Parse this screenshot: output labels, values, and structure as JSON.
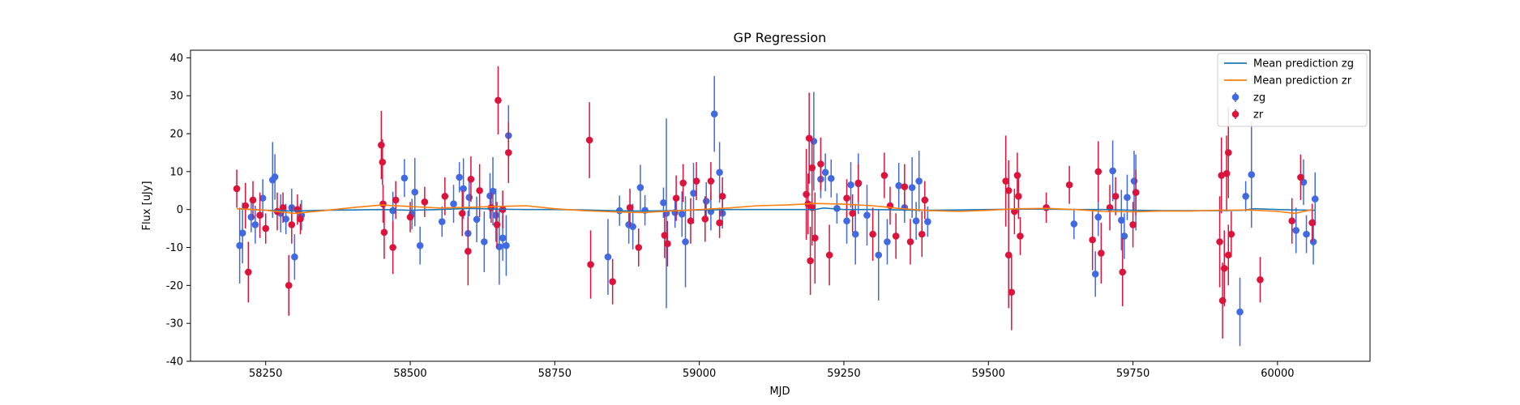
{
  "chart_data": {
    "type": "scatter",
    "title": "GP Regression",
    "xlabel": "MJD",
    "ylabel": "Flux [uJy]",
    "xlim": [
      58120,
      60160
    ],
    "ylim": [
      -40,
      42
    ],
    "x_ticks": [
      58250,
      58500,
      58750,
      59000,
      59250,
      59500,
      59750,
      60000
    ],
    "y_ticks": [
      -40,
      -30,
      -20,
      -10,
      0,
      10,
      20,
      30,
      40
    ],
    "grid": false,
    "legend_position": "top-right",
    "series": [
      {
        "name": "zg",
        "kind": "errorbar",
        "color": "#4169e1",
        "points": [
          [
            58205,
            -9.5,
            10
          ],
          [
            58210,
            -6.2,
            8
          ],
          [
            58225,
            -2.0,
            4
          ],
          [
            58232,
            -4.0,
            5
          ],
          [
            58245,
            3.0,
            5
          ],
          [
            58262,
            7.8,
            10
          ],
          [
            58266,
            8.6,
            6
          ],
          [
            58276,
            -1.0,
            5
          ],
          [
            58285,
            -2.5,
            4
          ],
          [
            58295,
            0.5,
            5
          ],
          [
            58300,
            -12.5,
            6
          ],
          [
            58312,
            -1.5,
            4
          ],
          [
            58470,
            -0.3,
            5
          ],
          [
            58490,
            8.3,
            5
          ],
          [
            58503,
            -1.2,
            4
          ],
          [
            58508,
            4.6,
            9
          ],
          [
            58517,
            -9.5,
            5
          ],
          [
            58555,
            -3.2,
            4
          ],
          [
            58575,
            1.5,
            5
          ],
          [
            58585,
            8.5,
            4
          ],
          [
            58592,
            5.5,
            8
          ],
          [
            58600,
            -6.3,
            6
          ],
          [
            58602,
            3.2,
            5
          ],
          [
            58615,
            -2.6,
            6
          ],
          [
            58628,
            -8.5,
            8
          ],
          [
            58638,
            3.6,
            6
          ],
          [
            58643,
            4.8,
            9
          ],
          [
            58648,
            -1.5,
            7
          ],
          [
            58654,
            -9.8,
            10
          ],
          [
            58660,
            -7.5,
            6
          ],
          [
            58666,
            -9.5,
            8
          ],
          [
            58670,
            19.5,
            8
          ],
          [
            58842,
            -12.5,
            10
          ],
          [
            58862,
            -0.3,
            4
          ],
          [
            58878,
            -4.0,
            5
          ],
          [
            58885,
            -4.5,
            6
          ],
          [
            58898,
            5.8,
            6
          ],
          [
            58906,
            -0.2,
            4
          ],
          [
            58938,
            1.8,
            4
          ],
          [
            58943,
            -1.0,
            25
          ],
          [
            58958,
            -0.8,
            4
          ],
          [
            58970,
            -1.2,
            6
          ],
          [
            58976,
            -8.5,
            12
          ],
          [
            58990,
            4.3,
            8
          ],
          [
            59012,
            2.2,
            5
          ],
          [
            59020,
            -0.5,
            5
          ],
          [
            59026,
            25.2,
            10
          ],
          [
            59035,
            9.8,
            8
          ],
          [
            59040,
            -1.0,
            4
          ],
          [
            59198,
            18.0,
            13
          ],
          [
            59210,
            8.0,
            5
          ],
          [
            59218,
            9.8,
            5
          ],
          [
            59228,
            8.2,
            5
          ],
          [
            59238,
            0.3,
            4
          ],
          [
            59255,
            -3.0,
            6
          ],
          [
            59262,
            6.5,
            6
          ],
          [
            59270,
            -6.5,
            8
          ],
          [
            59275,
            6.8,
            8
          ],
          [
            59290,
            -1.5,
            8
          ],
          [
            59310,
            -12.0,
            12
          ],
          [
            59325,
            -8.5,
            6
          ],
          [
            59345,
            6.3,
            6
          ],
          [
            59355,
            0.5,
            4
          ],
          [
            59368,
            5.8,
            8
          ],
          [
            59375,
            -3.0,
            5
          ],
          [
            59380,
            7.5,
            8
          ],
          [
            59395,
            -3.2,
            4
          ],
          [
            59648,
            -3.8,
            4
          ],
          [
            59685,
            -17.0,
            6
          ],
          [
            59690,
            -2.0,
            5
          ],
          [
            59715,
            10.2,
            8
          ],
          [
            59730,
            -2.8,
            8
          ],
          [
            59735,
            -7.0,
            6
          ],
          [
            59740,
            3.2,
            6
          ],
          [
            59752,
            7.5,
            8
          ],
          [
            59755,
            4.5,
            10
          ],
          [
            59935,
            -27.0,
            9
          ],
          [
            59945,
            3.5,
            4
          ],
          [
            59955,
            9.2,
            14
          ],
          [
            60032,
            -5.5,
            6
          ],
          [
            60045,
            7.2,
            6
          ],
          [
            60050,
            -6.5,
            5
          ],
          [
            60065,
            2.8,
            7
          ],
          [
            60062,
            -8.5,
            6
          ]
        ]
      },
      {
        "name": "zr",
        "kind": "errorbar",
        "color": "#dc143c",
        "points": [
          [
            58200,
            5.5,
            5
          ],
          [
            58215,
            1.0,
            6
          ],
          [
            58220,
            -16.5,
            8
          ],
          [
            58228,
            2.5,
            5
          ],
          [
            58240,
            -1.5,
            6
          ],
          [
            58250,
            -5.0,
            4
          ],
          [
            58270,
            -0.5,
            5
          ],
          [
            58280,
            0.5,
            4
          ],
          [
            58290,
            -20.0,
            8
          ],
          [
            58295,
            -4.0,
            5
          ],
          [
            58305,
            0.0,
            4
          ],
          [
            58310,
            -2.5,
            4
          ],
          [
            58450,
            17.0,
            9
          ],
          [
            58452,
            12.5,
            6
          ],
          [
            58453,
            1.5,
            5
          ],
          [
            58455,
            -6.0,
            7
          ],
          [
            58470,
            -10.0,
            7
          ],
          [
            58475,
            2.5,
            5
          ],
          [
            58500,
            -2.0,
            4
          ],
          [
            58525,
            2.0,
            4
          ],
          [
            58560,
            3.5,
            5
          ],
          [
            58590,
            -1.0,
            6
          ],
          [
            58600,
            -11.0,
            9
          ],
          [
            58605,
            8.0,
            6
          ],
          [
            58620,
            5.0,
            7
          ],
          [
            58640,
            0.5,
            4
          ],
          [
            58650,
            -4.0,
            6
          ],
          [
            58652,
            28.8,
            9
          ],
          [
            58660,
            0.0,
            5
          ],
          [
            58670,
            15.0,
            8
          ],
          [
            58810,
            18.3,
            10
          ],
          [
            58812,
            -14.5,
            9
          ],
          [
            58850,
            -19.0,
            6
          ],
          [
            58880,
            0.5,
            5
          ],
          [
            58895,
            -10.0,
            5
          ],
          [
            58940,
            -6.8,
            6
          ],
          [
            58945,
            -9.0,
            6
          ],
          [
            58960,
            3.0,
            6
          ],
          [
            58972,
            7.0,
            5
          ],
          [
            58985,
            -3.0,
            6
          ],
          [
            58995,
            7.5,
            5
          ],
          [
            59010,
            -2.5,
            6
          ],
          [
            59020,
            7.5,
            5
          ],
          [
            59040,
            3.5,
            5
          ],
          [
            59035,
            -3.5,
            4
          ],
          [
            59185,
            4.0,
            12
          ],
          [
            59188,
            1.5,
            8
          ],
          [
            59190,
            18.8,
            12
          ],
          [
            59192,
            -13.5,
            9
          ],
          [
            59195,
            11.0,
            8
          ],
          [
            59195,
            0.5,
            10
          ],
          [
            59200,
            -7.5,
            12
          ],
          [
            59210,
            12.0,
            7
          ],
          [
            59225,
            -12.0,
            8
          ],
          [
            59255,
            3.0,
            5
          ],
          [
            59265,
            -1.0,
            5
          ],
          [
            59275,
            7.0,
            5
          ],
          [
            59300,
            -6.5,
            7
          ],
          [
            59320,
            9.0,
            6
          ],
          [
            59330,
            1.0,
            5
          ],
          [
            59340,
            -7.0,
            6
          ],
          [
            59355,
            6.0,
            6
          ],
          [
            59365,
            -8.5,
            6
          ],
          [
            59385,
            -6.5,
            6
          ],
          [
            59390,
            2.5,
            5
          ],
          [
            59530,
            7.5,
            12
          ],
          [
            59535,
            5.0,
            8
          ],
          [
            59535,
            -12.0,
            14
          ],
          [
            59540,
            -21.8,
            10
          ],
          [
            59545,
            -0.5,
            6
          ],
          [
            59550,
            9.0,
            6
          ],
          [
            59552,
            3.5,
            6
          ],
          [
            59555,
            -7.0,
            5
          ],
          [
            59600,
            0.5,
            4
          ],
          [
            59640,
            6.5,
            5
          ],
          [
            59680,
            -8.0,
            8
          ],
          [
            59690,
            10.0,
            8
          ],
          [
            59695,
            -11.5,
            8
          ],
          [
            59710,
            0.5,
            6
          ],
          [
            59720,
            3.5,
            5
          ],
          [
            59732,
            -16.5,
            9
          ],
          [
            59750,
            -4.0,
            6
          ],
          [
            59755,
            4.5,
            6
          ],
          [
            59900,
            -8.5,
            12
          ],
          [
            59903,
            9.0,
            10
          ],
          [
            59905,
            -24.0,
            10
          ],
          [
            59908,
            -15.5,
            10
          ],
          [
            59912,
            9.5,
            10
          ],
          [
            59915,
            15.0,
            12
          ],
          [
            59915,
            -12.0,
            8
          ],
          [
            59920,
            -6.5,
            6
          ],
          [
            59970,
            -18.5,
            6
          ],
          [
            60025,
            -3.0,
            6
          ],
          [
            60040,
            8.5,
            6
          ],
          [
            60060,
            -3.5,
            5
          ]
        ]
      },
      {
        "name": "Mean prediction zg",
        "kind": "line",
        "color": "#1f77b4",
        "points": [
          [
            58200,
            0.2
          ],
          [
            58250,
            -0.2
          ],
          [
            58300,
            -0.4
          ],
          [
            58350,
            -0.2
          ],
          [
            58400,
            -0.1
          ],
          [
            58450,
            0.0
          ],
          [
            58500,
            -0.2
          ],
          [
            58550,
            0.0
          ],
          [
            58600,
            0.3
          ],
          [
            58650,
            0.1
          ],
          [
            58700,
            0.0
          ],
          [
            58750,
            0.0
          ],
          [
            58800,
            -0.1
          ],
          [
            58850,
            -0.3
          ],
          [
            58900,
            -0.4
          ],
          [
            58950,
            -0.3
          ],
          [
            59000,
            -0.1
          ],
          [
            59050,
            0.0
          ],
          [
            59100,
            0.0
          ],
          [
            59150,
            0.0
          ],
          [
            59200,
            0.0
          ],
          [
            59215,
            0.4
          ],
          [
            59250,
            0.0
          ],
          [
            59300,
            0.0
          ],
          [
            59350,
            -0.1
          ],
          [
            59400,
            -0.2
          ],
          [
            59450,
            -0.1
          ],
          [
            59500,
            0.0
          ],
          [
            59550,
            0.1
          ],
          [
            59600,
            0.1
          ],
          [
            59650,
            0.0
          ],
          [
            59700,
            0.0
          ],
          [
            59750,
            -0.2
          ],
          [
            59800,
            -0.3
          ],
          [
            59850,
            -0.3
          ],
          [
            59900,
            -0.3
          ],
          [
            59940,
            -0.2
          ],
          [
            59960,
            0.2
          ],
          [
            60000,
            0.0
          ],
          [
            60030,
            -0.1
          ],
          [
            60065,
            -0.2
          ]
        ]
      },
      {
        "name": "Mean prediction zr",
        "kind": "line",
        "color": "#ff7f0e",
        "points": [
          [
            58200,
            0.2
          ],
          [
            58250,
            -0.2
          ],
          [
            58300,
            -1.0
          ],
          [
            58350,
            -0.3
          ],
          [
            58400,
            0.5
          ],
          [
            58450,
            1.2
          ],
          [
            58500,
            0.8
          ],
          [
            58550,
            0.4
          ],
          [
            58600,
            0.6
          ],
          [
            58650,
            0.8
          ],
          [
            58700,
            1.0
          ],
          [
            58750,
            0.2
          ],
          [
            58800,
            -0.3
          ],
          [
            58850,
            -0.6
          ],
          [
            58900,
            -0.8
          ],
          [
            58950,
            -0.4
          ],
          [
            59000,
            0.0
          ],
          [
            59050,
            0.4
          ],
          [
            59100,
            1.0
          ],
          [
            59150,
            1.2
          ],
          [
            59200,
            1.6
          ],
          [
            59250,
            1.4
          ],
          [
            59300,
            1.0
          ],
          [
            59350,
            0.2
          ],
          [
            59400,
            -0.3
          ],
          [
            59450,
            -0.5
          ],
          [
            59500,
            -0.2
          ],
          [
            59550,
            0.2
          ],
          [
            59600,
            0.3
          ],
          [
            59650,
            0.0
          ],
          [
            59700,
            -0.5
          ],
          [
            59750,
            -0.6
          ],
          [
            59800,
            -0.4
          ],
          [
            59850,
            -0.4
          ],
          [
            59900,
            -0.2
          ],
          [
            59950,
            -0.1
          ],
          [
            60000,
            -0.5
          ],
          [
            60030,
            -1.0
          ],
          [
            60060,
            0.0
          ]
        ]
      }
    ]
  }
}
